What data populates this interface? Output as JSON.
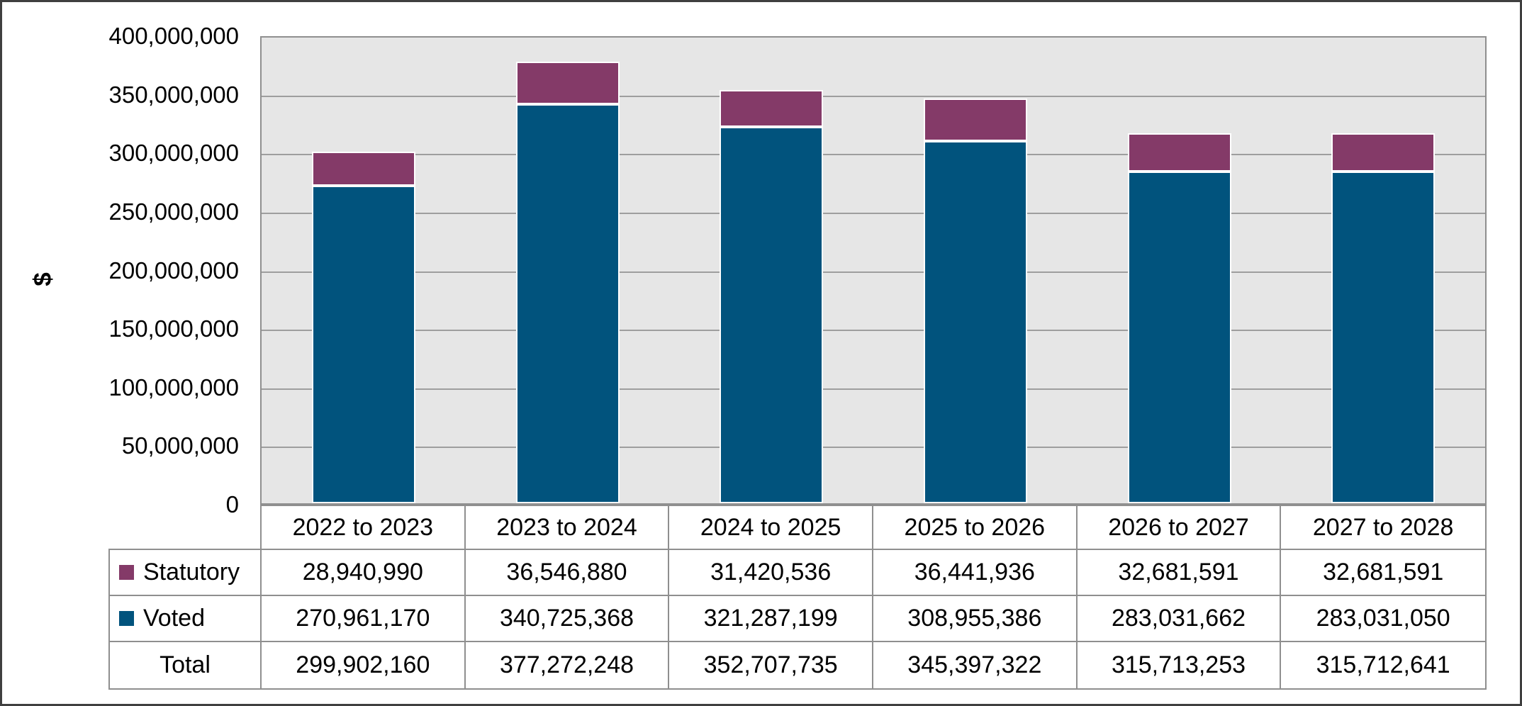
{
  "chart_data": {
    "type": "bar",
    "stacked": true,
    "title": "",
    "xlabel": "",
    "ylabel": "$",
    "ylim": [
      0,
      400000000
    ],
    "ytick_step": 50000000,
    "ytick_labels": [
      "400,000,000",
      "350,000,000",
      "300,000,000",
      "250,000,000",
      "200,000,000",
      "150,000,000",
      "100,000,000",
      "50,000,000",
      "0"
    ],
    "grid": true,
    "legend_position": "table-left",
    "categories": [
      "2022 to 2023",
      "2023 to 2024",
      "2024 to 2025",
      "2025 to 2026",
      "2026 to 2027",
      "2027 to 2028"
    ],
    "series": [
      {
        "name": "Statutory",
        "color": "#843A68",
        "values": [
          28940990,
          36546880,
          31420536,
          36441936,
          32681591,
          32681591
        ]
      },
      {
        "name": "Voted",
        "color": "#01537D",
        "values": [
          270961170,
          340725368,
          321287199,
          308955386,
          283031662,
          283031050
        ]
      }
    ],
    "totals": {
      "name": "Total",
      "values": [
        299902160,
        377272248,
        352707735,
        345397322,
        315713253,
        315712641
      ]
    }
  },
  "table": {
    "rows": [
      {
        "label": "Statutory",
        "swatch": "#843A68",
        "values": [
          "28,940,990",
          "36,546,880",
          "31,420,536",
          "36,441,936",
          "32,681,591",
          "32,681,591"
        ]
      },
      {
        "label": "Voted",
        "swatch": "#01537D",
        "values": [
          "270,961,170",
          "340,725,368",
          "321,287,199",
          "308,955,386",
          "283,031,662",
          "283,031,050"
        ]
      },
      {
        "label": "Total",
        "swatch": null,
        "values": [
          "299,902,160",
          "377,272,248",
          "352,707,735",
          "345,397,322",
          "315,713,253",
          "315,712,641"
        ]
      }
    ]
  },
  "colors": {
    "statutory": "#843A68",
    "voted": "#01537D",
    "plot_background": "#E6E6E6",
    "gridline": "#9E9E9E",
    "table_border": "#8F8F8F",
    "frame_border": "#3F3F3F",
    "bar_outline": "#FFFFFF"
  }
}
